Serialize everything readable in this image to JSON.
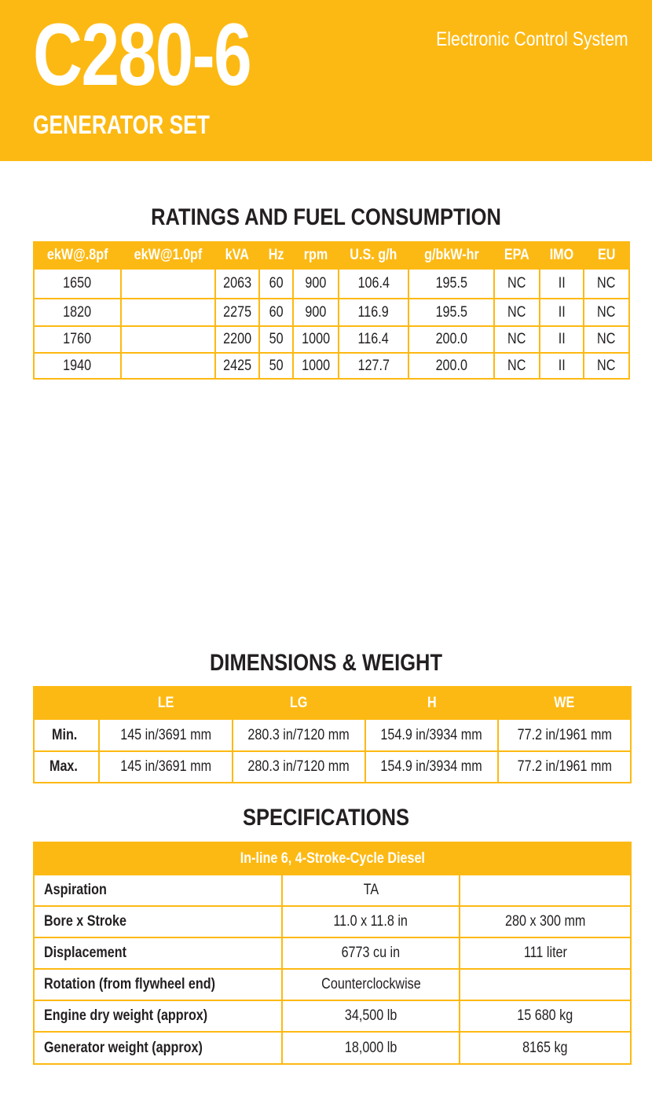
{
  "header": {
    "model": "C280-6",
    "subtitle": "GENERATOR SET",
    "system": "Electronic Control System",
    "brand_color": "#fdb913"
  },
  "ratings": {
    "title": "RATINGS AND FUEL CONSUMPTION",
    "columns": [
      "ekW@.8pf",
      "ekW@1.0pf",
      "kVA",
      "Hz",
      "rpm",
      "U.S. g/h",
      "g/bkW-hr",
      "EPA",
      "IMO",
      "EU"
    ],
    "rows": [
      [
        "1650",
        "",
        "2063",
        "60",
        "900",
        "106.4",
        "195.5",
        "NC",
        "II",
        "NC"
      ],
      [
        "1820",
        "",
        "2275",
        "60",
        "900",
        "116.9",
        "195.5",
        "NC",
        "II",
        "NC"
      ],
      [
        "1760",
        "",
        "2200",
        "50",
        "1000",
        "116.4",
        "200.0",
        "NC",
        "II",
        "NC"
      ],
      [
        "1940",
        "",
        "2425",
        "50",
        "1000",
        "127.7",
        "200.0",
        "NC",
        "II",
        "NC"
      ]
    ]
  },
  "dimensions": {
    "title": "DIMENSIONS & WEIGHT",
    "columns": [
      "",
      "LE",
      "LG",
      "H",
      "WE"
    ],
    "rows": [
      [
        "Min.",
        "145 in/3691 mm",
        "280.3 in/7120 mm",
        "154.9 in/3934 mm",
        "77.2 in/1961 mm"
      ],
      [
        "Max.",
        "145 in/3691 mm",
        "280.3 in/7120 mm",
        "154.9 in/3934 mm",
        "77.2 in/1961 mm"
      ]
    ]
  },
  "specifications": {
    "title": "SPECIFICATIONS",
    "header": "In-line 6, 4-Stroke-Cycle Diesel",
    "rows": [
      [
        "Aspiration",
        "TA",
        ""
      ],
      [
        "Bore x Stroke",
        "11.0 x 11.8 in",
        "280 x 300 mm"
      ],
      [
        "Displacement",
        "6773 cu in",
        "111 liter"
      ],
      [
        "Rotation (from flywheel end)",
        "Counterclockwise",
        ""
      ],
      [
        "Engine dry weight (approx)",
        "34,500 lb",
        "15 680 kg"
      ],
      [
        "Generator weight (approx)",
        "18,000 lb",
        "8165 kg"
      ]
    ]
  }
}
